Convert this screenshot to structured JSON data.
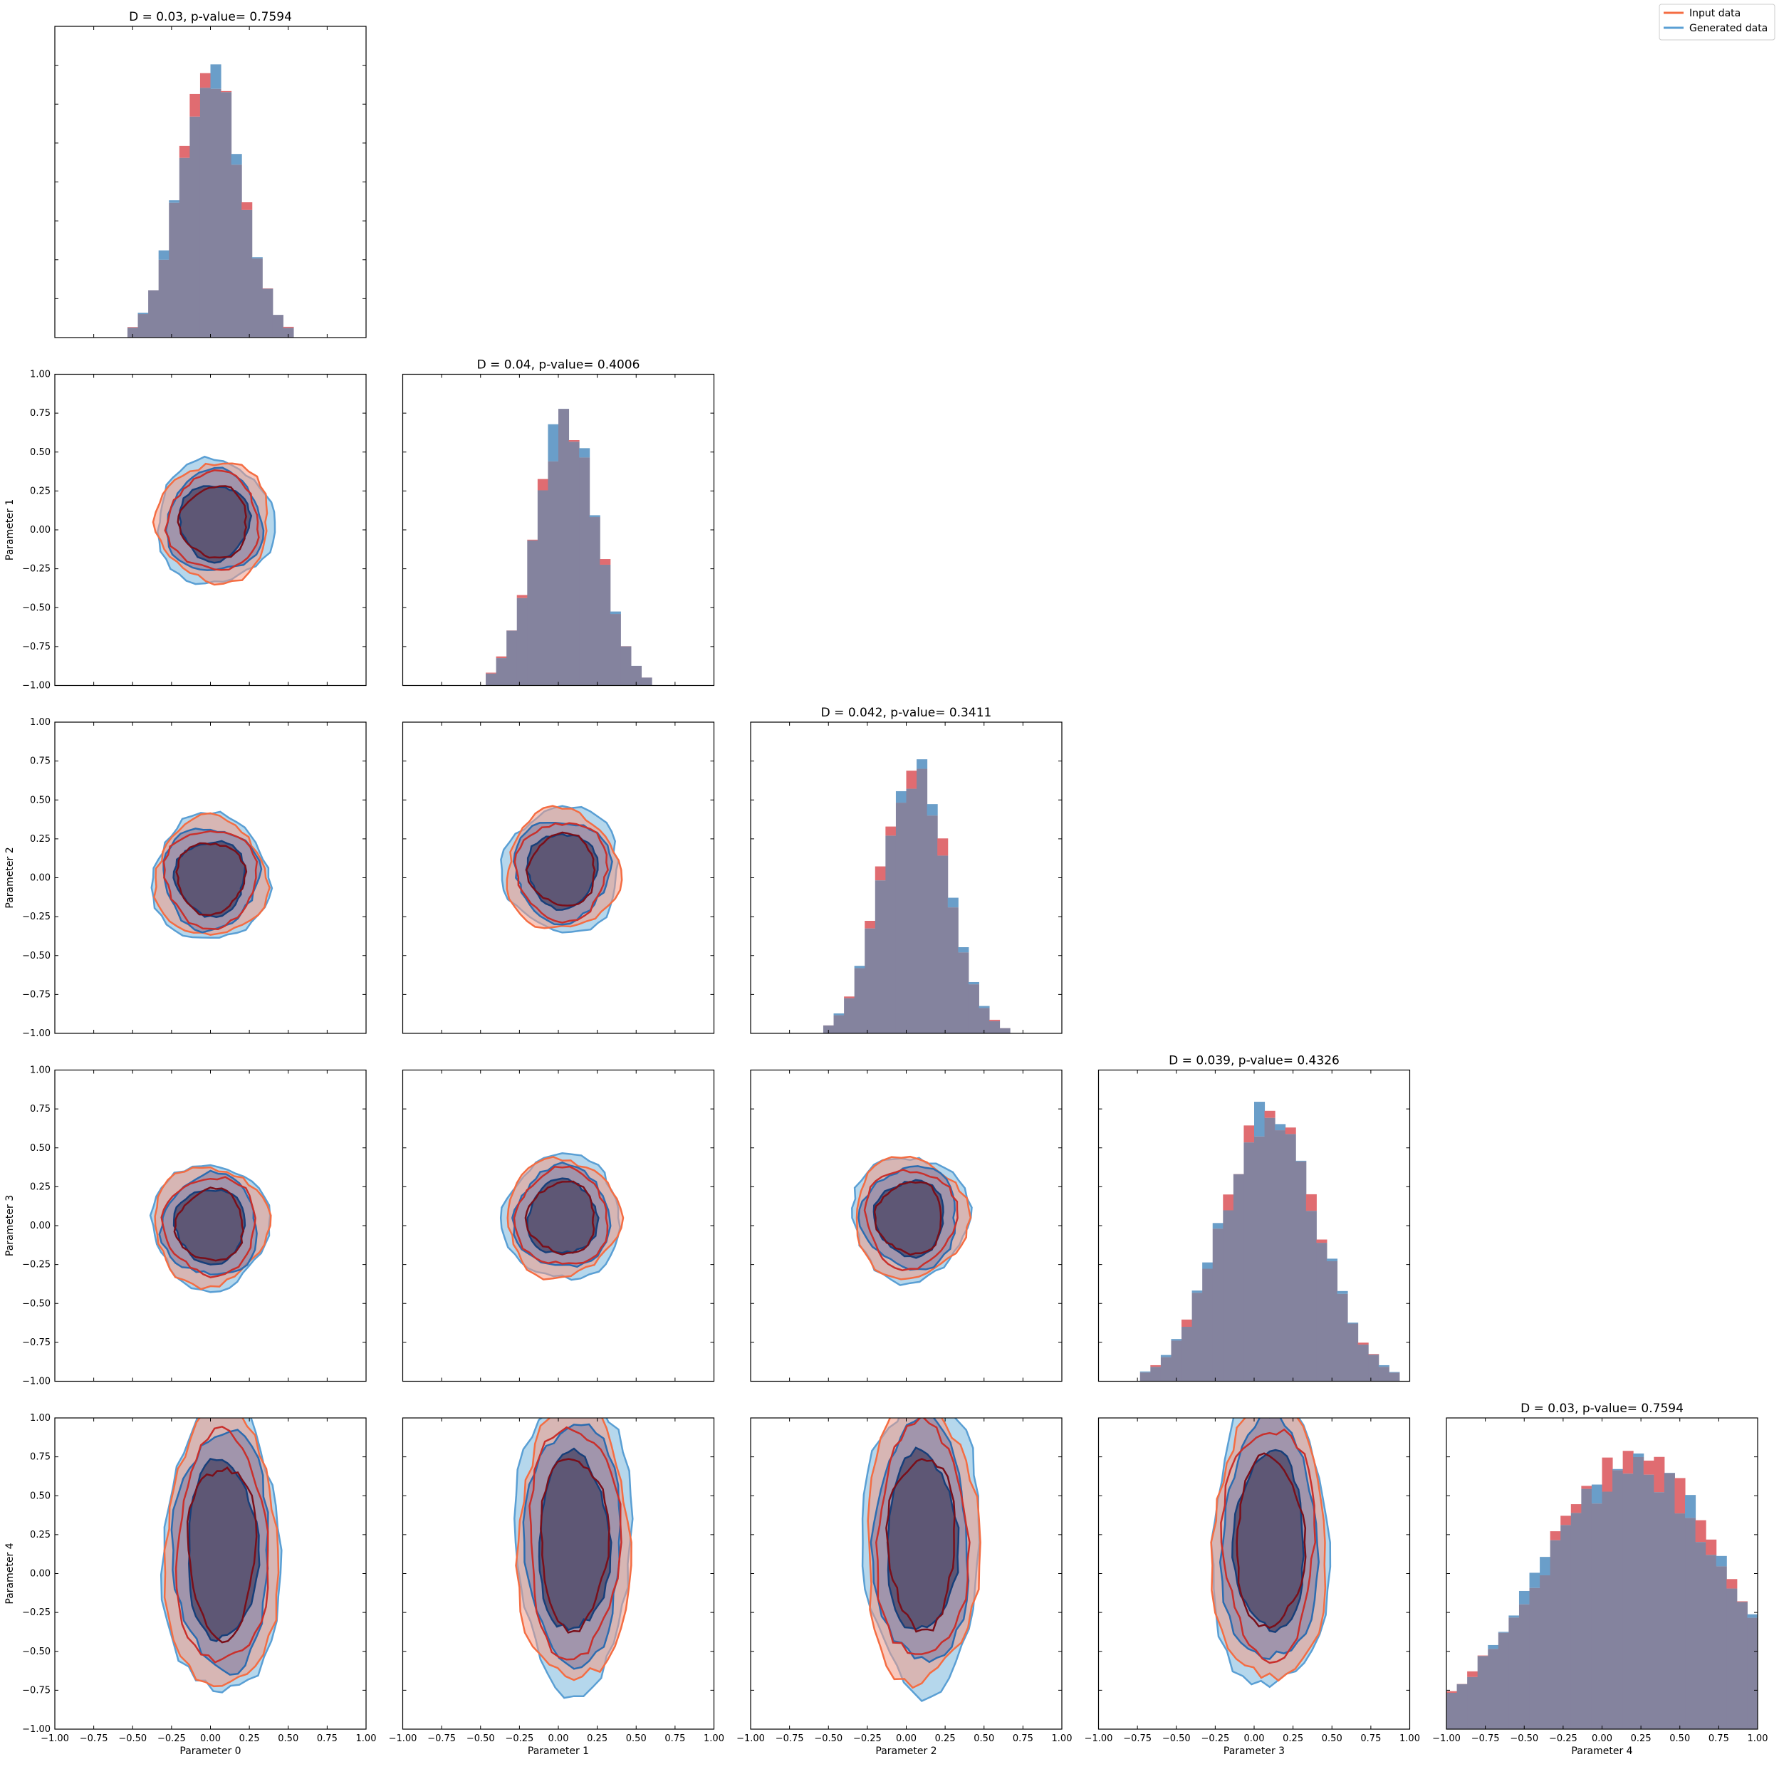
{
  "legend": {
    "position": "top-right",
    "items": [
      {
        "label": "Input data",
        "color": "#f46d43"
      },
      {
        "label": "Generated data",
        "color": "#5a9fd4"
      }
    ]
  },
  "colors": {
    "input_hist": "#e06c71",
    "generated_hist": "#6a9ec9",
    "overlap_hist": "#84839e",
    "input_fill": "#f29a86",
    "generated_fill": "#9cc9e6",
    "input_line": "#f46d43",
    "input_line_mid": "#c9302c",
    "input_line_inner": "#7a0f1a",
    "generated_line": "#5a9fd4",
    "generated_line_mid": "#2c6cb0",
    "generated_line_inner": "#173f7a",
    "core_fill": "#57506f"
  },
  "chart_data": {
    "type": "corner",
    "n_parameters": 5,
    "axis_range": [
      -1.0,
      1.0
    ],
    "tick_values": [
      -1.0,
      -0.75,
      -0.5,
      -0.25,
      0.0,
      0.25,
      0.5,
      0.75,
      1.0
    ],
    "tick_labels": [
      "−1.00",
      "−0.75",
      "−0.50",
      "−0.25",
      "0.00",
      "0.25",
      "0.50",
      "0.75",
      "1.00"
    ],
    "x_labels": [
      "Parameter 0",
      "Parameter 1",
      "Parameter 2",
      "Parameter 3",
      "Parameter 4"
    ],
    "y_labels": [
      "",
      "Parameter 1",
      "Parameter 2",
      "Parameter 3",
      "Parameter 4"
    ],
    "diagonal_titles": [
      "D = 0.03, p-value= 0.7594",
      "D = 0.04, p-value= 0.4006",
      "D = 0.042, p-value= 0.3411",
      "D = 0.039, p-value= 0.4326",
      "D = 0.03, p-value= 0.7594"
    ],
    "hist_centers": [
      0.0,
      0.05,
      0.05,
      0.1,
      0.2
    ],
    "hist_widths": [
      0.14,
      0.14,
      0.15,
      0.22,
      0.42
    ],
    "contour_centers": [
      [
        0.0,
        0.05,
        0.0,
        0.05,
        0.15
      ],
      [
        0.05,
        0.05,
        0.05,
        0.1,
        0.2
      ],
      [
        0.0,
        0.05,
        0.05,
        0.1,
        0.2
      ],
      [
        0.0,
        0.05,
        0.05,
        0.1,
        0.2
      ],
      [
        0.15,
        0.2,
        0.2,
        0.2,
        0.2
      ]
    ]
  }
}
